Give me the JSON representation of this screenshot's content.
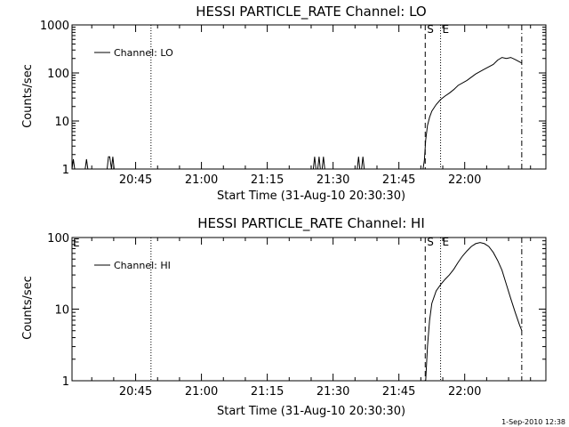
{
  "chart_data": [
    {
      "type": "line",
      "title": "HESSI PARTICLE_RATE Channel: LO",
      "xlabel": "Start Time (31-Aug-10 20:30:30)",
      "ylabel": "Counts/sec",
      "y_scale": "log",
      "ylim": [
        1,
        1000
      ],
      "xlim_minutes": [
        0,
        108
      ],
      "x_ticks": [
        {
          "label": "20:45",
          "minute": 14.5
        },
        {
          "label": "21:00",
          "minute": 29.5
        },
        {
          "label": "21:15",
          "minute": 44.5
        },
        {
          "label": "21:30",
          "minute": 59.5
        },
        {
          "label": "21:45",
          "minute": 74.5
        },
        {
          "label": "22:00",
          "minute": 89.5
        }
      ],
      "y_ticks": [
        {
          "label": "1",
          "value": 1
        },
        {
          "label": "10",
          "value": 10
        },
        {
          "label": "100",
          "value": 100
        },
        {
          "label": "1000",
          "value": 1000
        }
      ],
      "legend": {
        "label": "Channel: LO",
        "placement": "top-left"
      },
      "markers": [
        {
          "type": "dotted",
          "minute": 18,
          "label": ""
        },
        {
          "type": "dashed",
          "minute": 80.5,
          "label": "S"
        },
        {
          "type": "dotted",
          "minute": 84,
          "label": "E"
        },
        {
          "type": "dashdot",
          "minute": 102.5,
          "label": ""
        }
      ],
      "series": [
        {
          "name": "Channel: LO",
          "x": [
            0.0,
            0.3,
            0.6,
            1.0,
            1.3,
            1.6,
            2.0,
            2.5,
            3.0,
            3.3,
            3.6,
            4.0,
            5.0,
            8.0,
            8.3,
            8.6,
            9.0,
            9.3,
            9.6,
            10.0,
            10.3,
            10.6,
            11.0,
            12.0,
            20.0,
            40.0,
            55.0,
            55.3,
            55.6,
            56.0,
            56.3,
            56.6,
            57.0,
            57.3,
            57.6,
            58.0,
            59.0,
            62.0,
            65.0,
            65.3,
            65.6,
            66.0,
            66.3,
            66.6,
            67.0,
            70.0,
            80.0,
            80.3,
            80.6,
            81.0,
            81.5,
            82.0,
            83.0,
            84.0,
            85.0,
            86.0,
            87.0,
            88.0,
            90.0,
            92.0,
            94.0,
            96.0,
            97.0,
            98.0,
            99.0,
            100.0,
            101.0,
            102.0,
            102.5
          ],
          "y": [
            1,
            1.6,
            1,
            1,
            1,
            1,
            1,
            1,
            1,
            1.6,
            1,
            1,
            1,
            1,
            1.8,
            1.8,
            1,
            1.8,
            1,
            1,
            1,
            1,
            1,
            1,
            1,
            1,
            1,
            1.8,
            1,
            1,
            1.8,
            1,
            1,
            1.8,
            1,
            1,
            1,
            1,
            1,
            1.8,
            1,
            1,
            1.8,
            1,
            1,
            1,
            1,
            1.5,
            4,
            8,
            12,
            16,
            22,
            28,
            33,
            38,
            45,
            55,
            70,
            95,
            120,
            150,
            185,
            210,
            200,
            210,
            190,
            170,
            160
          ]
        }
      ]
    },
    {
      "type": "line",
      "title": "HESSI PARTICLE_RATE Channel: HI",
      "xlabel": "Start Time (31-Aug-10 20:30:30)",
      "ylabel": "Counts/sec",
      "y_scale": "log",
      "ylim": [
        1,
        100
      ],
      "xlim_minutes": [
        0,
        108
      ],
      "x_ticks": [
        {
          "label": "20:45",
          "minute": 14.5
        },
        {
          "label": "21:00",
          "minute": 29.5
        },
        {
          "label": "21:15",
          "minute": 44.5
        },
        {
          "label": "21:30",
          "minute": 59.5
        },
        {
          "label": "21:45",
          "minute": 74.5
        },
        {
          "label": "22:00",
          "minute": 89.5
        }
      ],
      "y_ticks": [
        {
          "label": "1",
          "value": 1
        },
        {
          "label": "10",
          "value": 10
        },
        {
          "label": "100",
          "value": 100
        }
      ],
      "legend": {
        "label": "Channel: HI",
        "placement": "top-left"
      },
      "markers": [
        {
          "type": "dotted",
          "minute": 18,
          "label": ""
        },
        {
          "type": "dashed",
          "minute": 80.5,
          "label": "S"
        },
        {
          "type": "dotted",
          "minute": 84,
          "label": "E"
        },
        {
          "type": "dashdot",
          "minute": 102.5,
          "label": ""
        }
      ],
      "corner_label": "E",
      "series": [
        {
          "name": "Channel: HI",
          "x": [
            80.6,
            81.0,
            81.5,
            82.0,
            83.0,
            84.0,
            85.0,
            86.0,
            87.0,
            88.0,
            89.0,
            90.0,
            91.0,
            92.0,
            93.0,
            94.0,
            95.0,
            96.0,
            97.0,
            98.0,
            99.0,
            100.0,
            101.0,
            102.0,
            102.5
          ],
          "y": [
            1,
            3,
            7,
            12,
            18,
            22,
            26,
            30,
            36,
            45,
            55,
            65,
            75,
            82,
            85,
            82,
            75,
            62,
            48,
            35,
            22,
            14,
            9,
            6,
            5
          ]
        }
      ]
    }
  ],
  "footer": {
    "timestamp": "1-Sep-2010 12:38"
  }
}
